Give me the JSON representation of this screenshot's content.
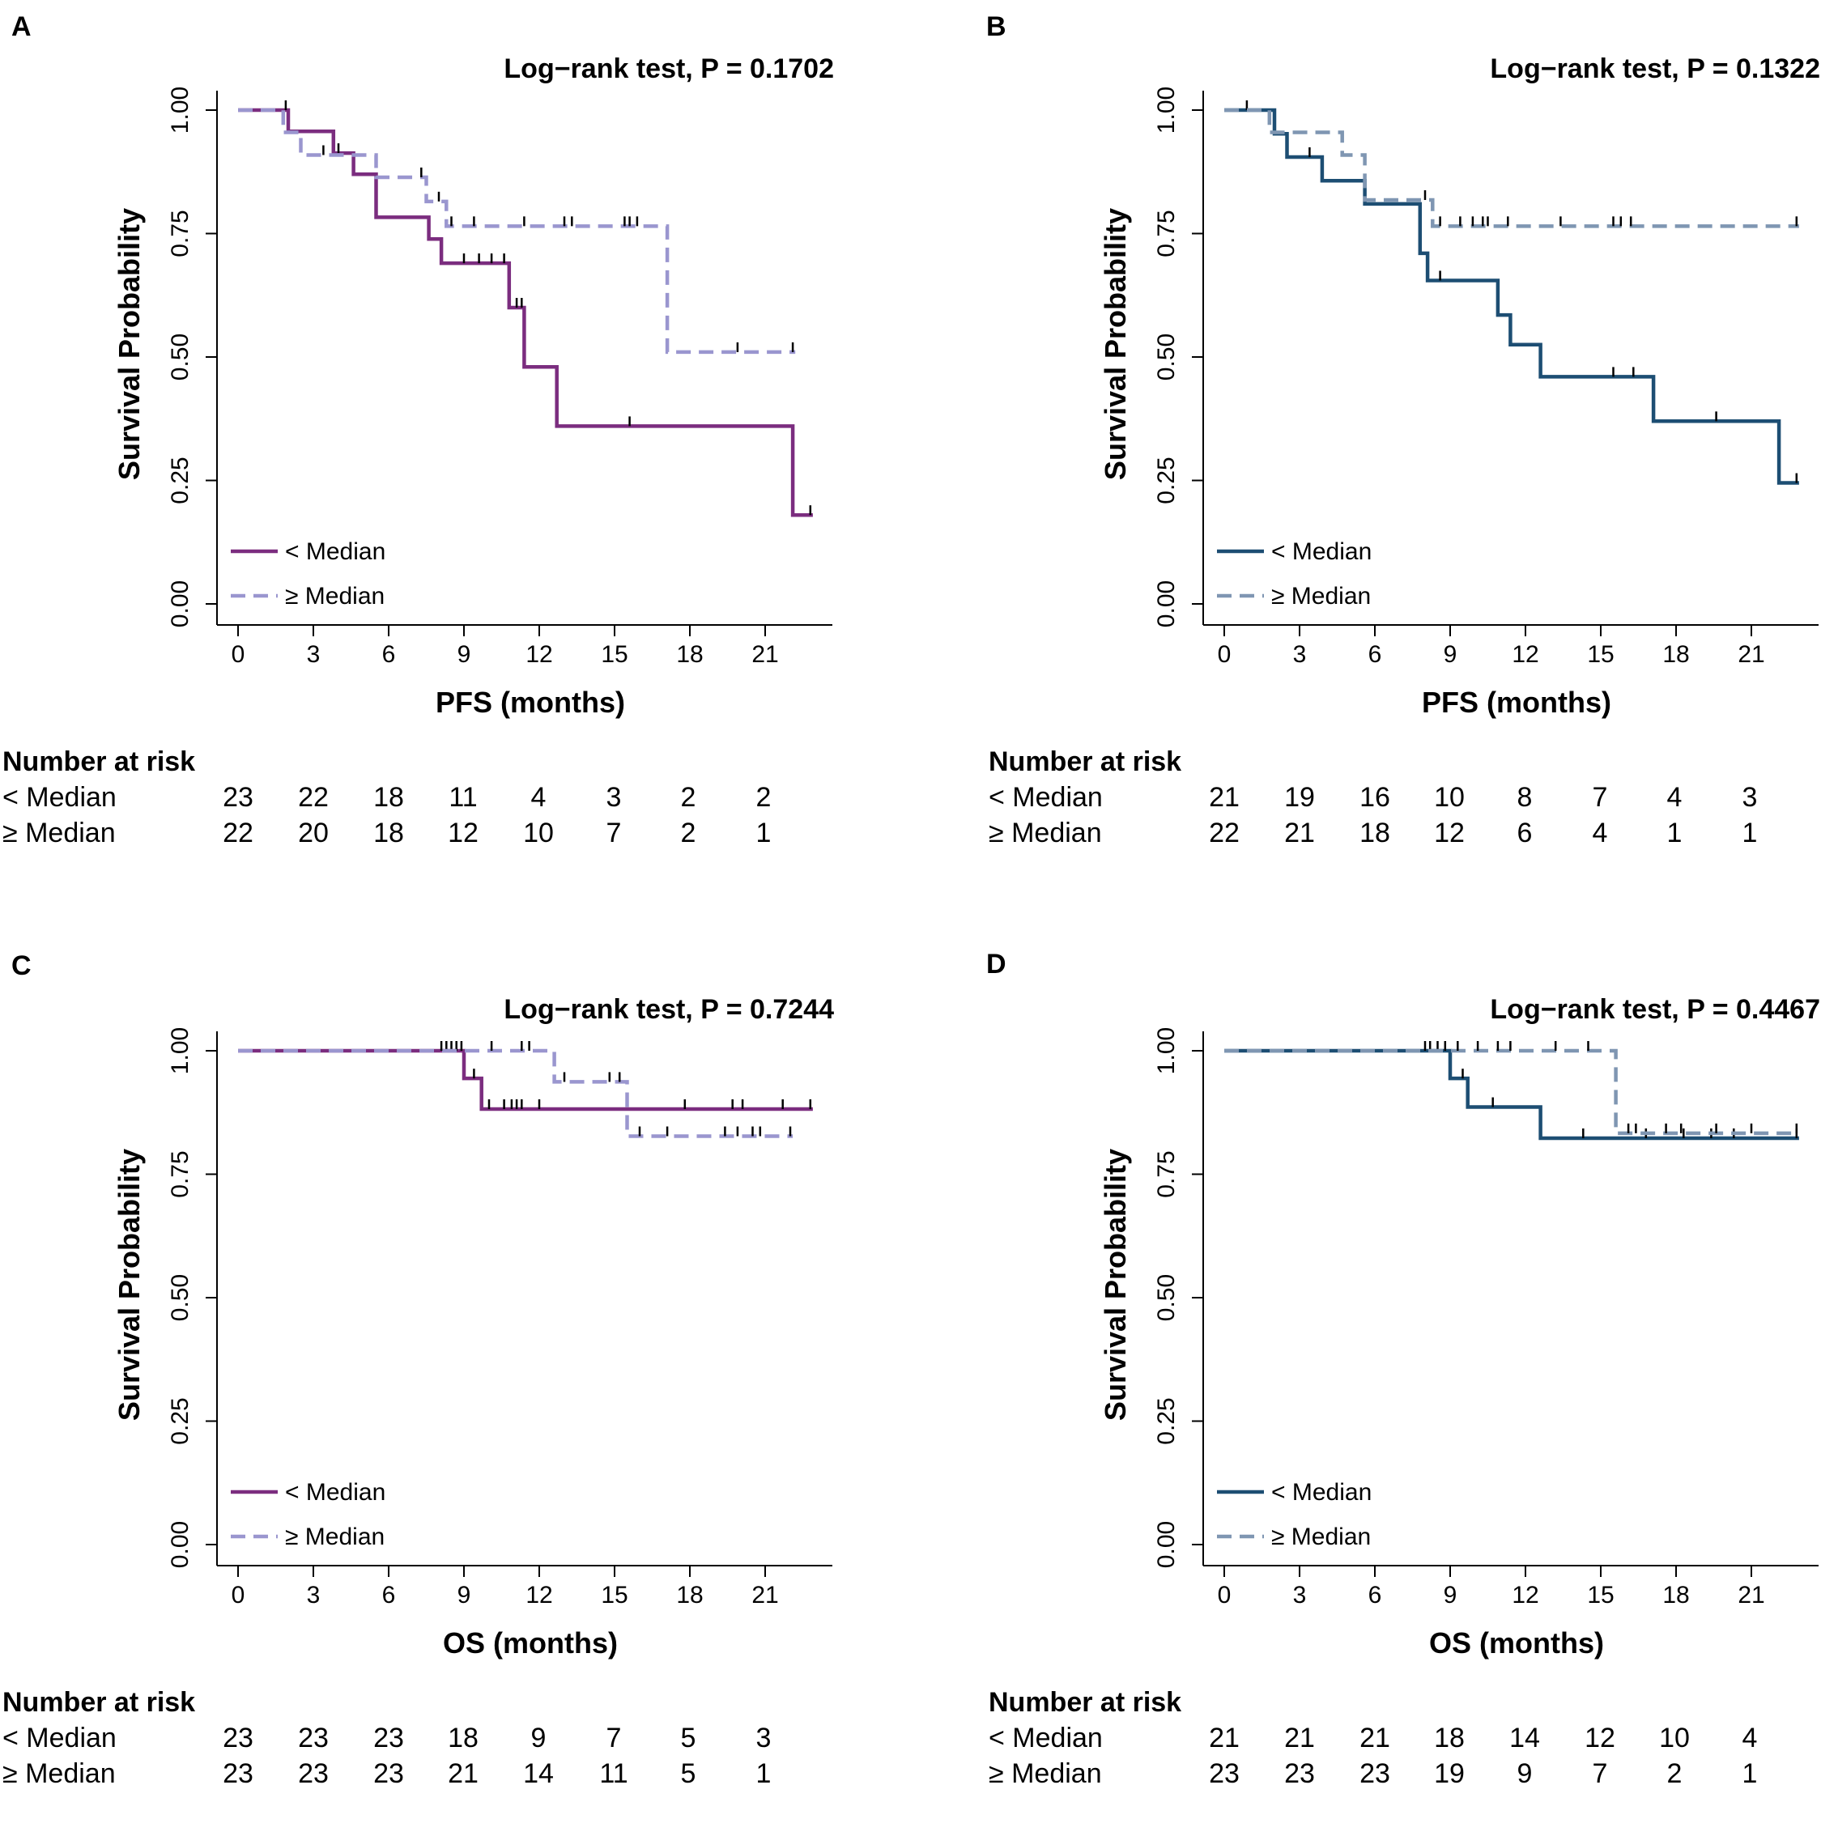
{
  "chart_data": [
    {
      "panel": "A",
      "type": "line",
      "subtype": "kaplan-meier",
      "title": "Log−rank test, P = 0.1702",
      "xlabel": "PFS (months)",
      "ylabel": "Survival Probability",
      "xlim": [
        0,
        23
      ],
      "ylim": [
        0,
        1
      ],
      "xticks": [
        0,
        3,
        6,
        9,
        12,
        15,
        18,
        21
      ],
      "xtick_labels": [
        "0",
        "3",
        "6",
        "9",
        "12",
        "15",
        "18",
        "21"
      ],
      "yticks": [
        0,
        0.25,
        0.5,
        0.75,
        1
      ],
      "ytick_labels": [
        "0.00",
        "0.25",
        "0.50",
        "0.75",
        "1.00"
      ],
      "series": [
        {
          "name": "< Median",
          "style": "solid",
          "color": "#7b2d7f",
          "steps": [
            [
              0,
              1.0
            ],
            [
              2.0,
              0.957
            ],
            [
              3.8,
              0.913
            ],
            [
              4.6,
              0.87
            ],
            [
              5.5,
              0.783
            ],
            [
              7.6,
              0.739
            ],
            [
              8.1,
              0.69
            ],
            [
              10.8,
              0.6
            ],
            [
              11.4,
              0.48
            ],
            [
              12.7,
              0.36
            ],
            [
              22.1,
              0.18
            ],
            [
              22.9,
              0.18
            ]
          ],
          "censors": [
            [
              1.9,
              1.0
            ],
            [
              4.0,
              0.913
            ],
            [
              9.0,
              0.69
            ],
            [
              9.6,
              0.69
            ],
            [
              10.1,
              0.69
            ],
            [
              10.6,
              0.69
            ],
            [
              11.1,
              0.6
            ],
            [
              11.3,
              0.6
            ],
            [
              15.6,
              0.36
            ],
            [
              22.8,
              0.18
            ]
          ]
        },
        {
          "name": "≥ Median",
          "style": "dashed",
          "color": "#9a96cf",
          "steps": [
            [
              0,
              1.0
            ],
            [
              1.8,
              0.955
            ],
            [
              2.5,
              0.909
            ],
            [
              5.5,
              0.864
            ],
            [
              7.5,
              0.815
            ],
            [
              8.3,
              0.765
            ],
            [
              17.1,
              0.51
            ],
            [
              22.2,
              0.51
            ]
          ],
          "censors": [
            [
              3.4,
              0.909
            ],
            [
              7.3,
              0.864
            ],
            [
              8.0,
              0.815
            ],
            [
              8.5,
              0.765
            ],
            [
              9.4,
              0.765
            ],
            [
              11.4,
              0.765
            ],
            [
              13.0,
              0.765
            ],
            [
              13.3,
              0.765
            ],
            [
              15.4,
              0.765
            ],
            [
              15.6,
              0.765
            ],
            [
              15.9,
              0.765
            ],
            [
              19.9,
              0.51
            ],
            [
              22.1,
              0.51
            ]
          ]
        }
      ],
      "legend": [
        "< Median",
        "≥ Median"
      ],
      "legend_position": "bottom-left",
      "risk_table": {
        "title": "Number at risk",
        "rows": [
          {
            "label": "< Median",
            "values": [
              "23",
              "22",
              "18",
              "11",
              "4",
              "3",
              "2",
              "2"
            ]
          },
          {
            "label": "≥ Median",
            "values": [
              "22",
              "20",
              "18",
              "12",
              "10",
              "7",
              "2",
              "1"
            ]
          }
        ]
      }
    },
    {
      "panel": "B",
      "type": "line",
      "subtype": "kaplan-meier",
      "title": "Log−rank test, P = 0.1322",
      "xlabel": "PFS (months)",
      "ylabel": "Survival Probability",
      "xlim": [
        0,
        23
      ],
      "ylim": [
        0,
        1
      ],
      "xticks": [
        0,
        3,
        6,
        9,
        12,
        15,
        18,
        21
      ],
      "xtick_labels": [
        "0",
        "3",
        "6",
        "9",
        "12",
        "15",
        "18",
        "21"
      ],
      "yticks": [
        0,
        0.25,
        0.5,
        0.75,
        1
      ],
      "ytick_labels": [
        "0.00",
        "0.25",
        "0.50",
        "0.75",
        "1.00"
      ],
      "series": [
        {
          "name": "< Median",
          "style": "solid",
          "color": "#1d4e73",
          "steps": [
            [
              0,
              1.0
            ],
            [
              2.0,
              0.952
            ],
            [
              2.5,
              0.905
            ],
            [
              3.9,
              0.857
            ],
            [
              5.6,
              0.81
            ],
            [
              7.8,
              0.71
            ],
            [
              8.1,
              0.655
            ],
            [
              10.9,
              0.585
            ],
            [
              11.4,
              0.525
            ],
            [
              12.6,
              0.46
            ],
            [
              17.1,
              0.37
            ],
            [
              22.1,
              0.245
            ],
            [
              22.9,
              0.245
            ]
          ],
          "censors": [
            [
              0.9,
              1.0
            ],
            [
              3.4,
              0.905
            ],
            [
              8.6,
              0.655
            ],
            [
              15.5,
              0.46
            ],
            [
              16.3,
              0.46
            ],
            [
              19.6,
              0.37
            ],
            [
              22.8,
              0.245
            ]
          ]
        },
        {
          "name": "≥ Median",
          "style": "dashed",
          "color": "#7f96b2",
          "steps": [
            [
              0,
              1.0
            ],
            [
              1.8,
              0.955
            ],
            [
              4.7,
              0.909
            ],
            [
              5.6,
              0.818
            ],
            [
              8.3,
              0.765
            ],
            [
              22.9,
              0.765
            ]
          ],
          "censors": [
            [
              8.0,
              0.818
            ],
            [
              8.6,
              0.765
            ],
            [
              9.4,
              0.765
            ],
            [
              9.9,
              0.765
            ],
            [
              10.3,
              0.765
            ],
            [
              10.5,
              0.765
            ],
            [
              11.3,
              0.765
            ],
            [
              13.4,
              0.765
            ],
            [
              15.5,
              0.765
            ],
            [
              15.8,
              0.765
            ],
            [
              16.2,
              0.765
            ],
            [
              22.8,
              0.765
            ]
          ]
        }
      ],
      "legend": [
        "< Median",
        "≥ Median"
      ],
      "legend_position": "bottom-left",
      "risk_table": {
        "title": "Number at risk",
        "rows": [
          {
            "label": "< Median",
            "values": [
              "21",
              "19",
              "16",
              "10",
              "8",
              "7",
              "4",
              "3"
            ]
          },
          {
            "label": "≥ Median",
            "values": [
              "22",
              "21",
              "18",
              "12",
              "6",
              "4",
              "1",
              "1"
            ]
          }
        ]
      }
    },
    {
      "panel": "C",
      "type": "line",
      "subtype": "kaplan-meier",
      "title": "Log−rank test, P = 0.7244",
      "xlabel": "OS (months)",
      "ylabel": "Survival Probability",
      "xlim": [
        0,
        23
      ],
      "ylim": [
        0,
        1
      ],
      "xticks": [
        0,
        3,
        6,
        9,
        12,
        15,
        18,
        21
      ],
      "xtick_labels": [
        "0",
        "3",
        "6",
        "9",
        "12",
        "15",
        "18",
        "21"
      ],
      "yticks": [
        0,
        0.25,
        0.5,
        0.75,
        1
      ],
      "ytick_labels": [
        "0.00",
        "0.25",
        "0.50",
        "0.75",
        "1.00"
      ],
      "series": [
        {
          "name": "< Median",
          "style": "solid",
          "color": "#7b2d7f",
          "steps": [
            [
              0,
              1.0
            ],
            [
              9.0,
              0.944
            ],
            [
              9.7,
              0.882
            ],
            [
              22.9,
              0.882
            ]
          ],
          "censors": [
            [
              8.3,
              1.0
            ],
            [
              8.5,
              1.0
            ],
            [
              8.7,
              1.0
            ],
            [
              9.4,
              0.944
            ],
            [
              10.0,
              0.882
            ],
            [
              10.6,
              0.882
            ],
            [
              10.9,
              0.882
            ],
            [
              11.1,
              0.882
            ],
            [
              11.3,
              0.882
            ],
            [
              12.0,
              0.882
            ],
            [
              17.8,
              0.882
            ],
            [
              19.7,
              0.882
            ],
            [
              20.1,
              0.882
            ],
            [
              21.7,
              0.882
            ],
            [
              22.8,
              0.882
            ]
          ]
        },
        {
          "name": "≥ Median",
          "style": "dashed",
          "color": "#9a96cf",
          "steps": [
            [
              0,
              1.0
            ],
            [
              12.6,
              0.937
            ],
            [
              15.5,
              0.827
            ],
            [
              22.1,
              0.827
            ]
          ],
          "censors": [
            [
              8.1,
              1.0
            ],
            [
              8.9,
              1.0
            ],
            [
              10.1,
              1.0
            ],
            [
              11.3,
              1.0
            ],
            [
              11.6,
              1.0
            ],
            [
              13.0,
              0.937
            ],
            [
              14.8,
              0.937
            ],
            [
              15.2,
              0.937
            ],
            [
              16.0,
              0.827
            ],
            [
              17.1,
              0.827
            ],
            [
              19.4,
              0.827
            ],
            [
              19.9,
              0.827
            ],
            [
              20.5,
              0.827
            ],
            [
              20.8,
              0.827
            ],
            [
              22.0,
              0.827
            ]
          ]
        }
      ],
      "legend": [
        "< Median",
        "≥ Median"
      ],
      "legend_position": "bottom-left",
      "risk_table": {
        "title": "Number at risk",
        "rows": [
          {
            "label": "< Median",
            "values": [
              "23",
              "23",
              "23",
              "18",
              "9",
              "7",
              "5",
              "3"
            ]
          },
          {
            "label": "≥ Median",
            "values": [
              "23",
              "23",
              "23",
              "21",
              "14",
              "11",
              "5",
              "1"
            ]
          }
        ]
      }
    },
    {
      "panel": "D",
      "type": "line",
      "subtype": "kaplan-meier",
      "title": "Log−rank test, P = 0.4467",
      "xlabel": "OS (months)",
      "ylabel": "Survival Probability",
      "xlim": [
        0,
        23
      ],
      "ylim": [
        0,
        1
      ],
      "xticks": [
        0,
        3,
        6,
        9,
        12,
        15,
        18,
        21
      ],
      "xtick_labels": [
        "0",
        "3",
        "6",
        "9",
        "12",
        "15",
        "18",
        "21"
      ],
      "yticks": [
        0,
        0.25,
        0.5,
        0.75,
        1
      ],
      "ytick_labels": [
        "0.00",
        "0.25",
        "0.50",
        "0.75",
        "1.00"
      ],
      "series": [
        {
          "name": "< Median",
          "style": "solid",
          "color": "#1d4e73",
          "steps": [
            [
              0,
              1.0
            ],
            [
              9.0,
              0.944
            ],
            [
              9.7,
              0.886
            ],
            [
              12.6,
              0.823
            ],
            [
              22.9,
              0.823
            ]
          ],
          "censors": [
            [
              8.2,
              1.0
            ],
            [
              8.5,
              1.0
            ],
            [
              9.5,
              0.944
            ],
            [
              10.7,
              0.886
            ],
            [
              14.3,
              0.823
            ],
            [
              16.8,
              0.823
            ],
            [
              18.3,
              0.823
            ],
            [
              19.4,
              0.823
            ],
            [
              20.3,
              0.823
            ],
            [
              22.8,
              0.823
            ]
          ]
        },
        {
          "name": "≥ Median",
          "style": "dashed",
          "color": "#7f96b2",
          "steps": [
            [
              0,
              1.0
            ],
            [
              15.6,
              0.833
            ],
            [
              22.9,
              0.833
            ]
          ],
          "censors": [
            [
              8.0,
              1.0
            ],
            [
              8.8,
              1.0
            ],
            [
              9.3,
              1.0
            ],
            [
              10.1,
              1.0
            ],
            [
              10.9,
              1.0
            ],
            [
              11.4,
              1.0
            ],
            [
              13.2,
              1.0
            ],
            [
              14.5,
              1.0
            ],
            [
              16.1,
              0.833
            ],
            [
              16.4,
              0.833
            ],
            [
              17.6,
              0.833
            ],
            [
              18.2,
              0.833
            ],
            [
              19.6,
              0.833
            ],
            [
              21.0,
              0.833
            ],
            [
              22.8,
              0.833
            ]
          ]
        }
      ],
      "legend": [
        "< Median",
        "≥ Median"
      ],
      "legend_position": "bottom-left",
      "risk_table": {
        "title": "Number at risk",
        "rows": [
          {
            "label": "< Median",
            "values": [
              "21",
              "21",
              "21",
              "18",
              "14",
              "12",
              "10",
              "4"
            ]
          },
          {
            "label": "≥ Median",
            "values": [
              "23",
              "23",
              "23",
              "19",
              "9",
              "7",
              "2",
              "1"
            ]
          }
        ]
      }
    }
  ]
}
